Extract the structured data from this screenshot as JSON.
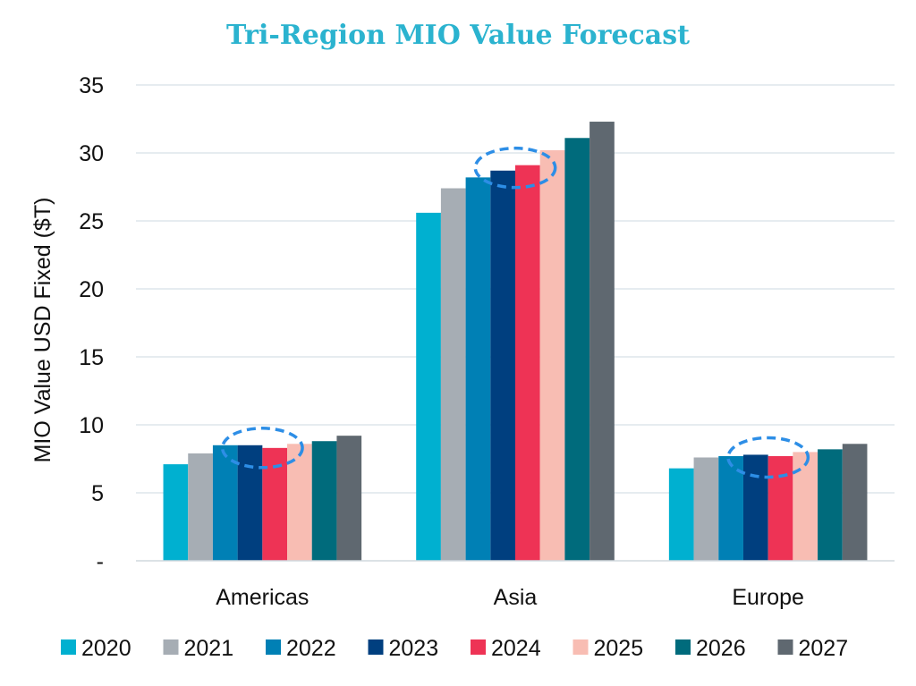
{
  "chart_data": {
    "type": "bar",
    "title": "Tri-Region MIO Value Forecast",
    "ylabel": "MIO Value USD Fixed ($T)",
    "xlabel": "",
    "ylim": [
      0,
      35
    ],
    "yticks": [
      0,
      5,
      10,
      15,
      20,
      25,
      30,
      35
    ],
    "ytick_labels": [
      "-",
      "5",
      "10",
      "15",
      "20",
      "25",
      "30",
      "35"
    ],
    "grid": true,
    "legend_position": "bottom",
    "categories": [
      "Americas",
      "Asia",
      "Europe"
    ],
    "series": [
      {
        "name": "2020",
        "color": "#00b0d0",
        "values": [
          7.1,
          25.6,
          6.8
        ]
      },
      {
        "name": "2021",
        "color": "#a6adb4",
        "values": [
          7.9,
          27.4,
          7.6
        ]
      },
      {
        "name": "2022",
        "color": "#0080b5",
        "values": [
          8.5,
          28.2,
          7.7
        ]
      },
      {
        "name": "2023",
        "color": "#003f7f",
        "values": [
          8.5,
          28.7,
          7.8
        ]
      },
      {
        "name": "2024",
        "color": "#ee3355",
        "values": [
          8.3,
          29.1,
          7.7
        ]
      },
      {
        "name": "2025",
        "color": "#f8bdb3",
        "values": [
          8.6,
          30.2,
          8.0
        ]
      },
      {
        "name": "2026",
        "color": "#006b7c",
        "values": [
          8.8,
          31.1,
          8.2
        ]
      },
      {
        "name": "2027",
        "color": "#5f6870",
        "values": [
          9.2,
          32.3,
          8.6
        ]
      }
    ],
    "highlight": {
      "series": [
        "2023",
        "2024"
      ],
      "style": "dashed-ellipse",
      "color": "#2d8ee6"
    }
  }
}
